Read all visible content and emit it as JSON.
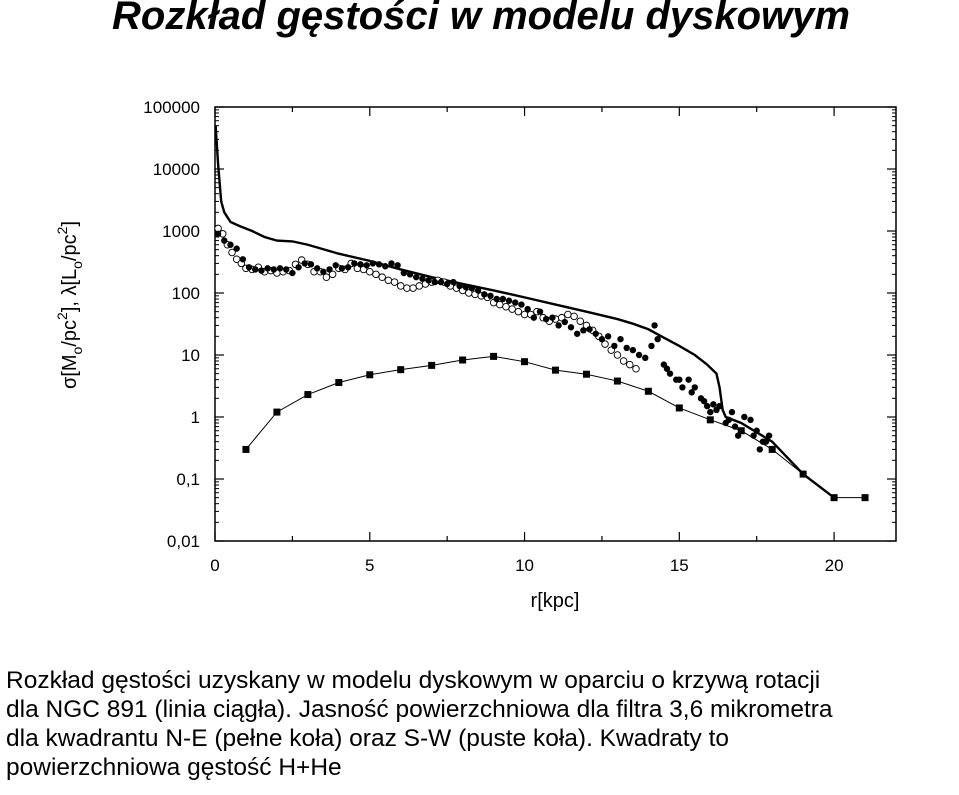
{
  "title": "Rozkład gęstości w modelu dyskowym",
  "caption_lines": [
    "Rozkład gęstości uzyskany w modelu dyskowym w oparciu o krzywą rotacji",
    "dla NGC 891 (linia ciągła). Jasność powierzchniowa dla filtra 3,6 mikrometra",
    "dla kwadrantu N-E (pełne koła) oraz S-W (puste koła). Kwadraty to",
    "powierzchniowa gęstość H+He"
  ],
  "chart_data": {
    "type": "scatter",
    "title": "",
    "xlabel": "r[kpc]",
    "ylabel": "σ[M_o/pc²], λ[L_o/pc²]",
    "ylabel_parts": {
      "sigma": "σ[M",
      "sub1": "o",
      "mid1": "/pc",
      "sup1": "2",
      "mid2": "], λ[L",
      "sub2": "o",
      "mid3": "/pc",
      "sup2": "2",
      "end": "]"
    },
    "y_scale": "log",
    "xlim": [
      0,
      22
    ],
    "ylim": [
      0.01,
      100000
    ],
    "x_ticks": [
      0,
      5,
      10,
      15,
      20
    ],
    "x_tick_labels": [
      "0",
      "5",
      "10",
      "15",
      "20"
    ],
    "y_ticks": [
      0.01,
      0.1,
      1,
      10,
      100,
      1000,
      10000,
      100000
    ],
    "y_tick_labels": [
      "0,01",
      "0,1",
      "1",
      "10",
      "100",
      "1000",
      "10000",
      "100000"
    ],
    "grid": false,
    "series": [
      {
        "style": "solid line",
        "x": [
          0.02,
          0.1,
          0.2,
          0.3,
          0.5,
          0.8,
          1.2,
          1.6,
          2.0,
          2.5,
          3.0,
          4.0,
          5.0,
          6.0,
          7.0,
          8.0,
          9.0,
          10.0,
          11.0,
          12.0,
          13.0,
          13.5,
          14.0,
          14.5,
          15.0,
          15.5,
          15.9,
          16.2,
          16.3,
          16.4,
          16.5,
          17.0,
          18.0,
          19.0,
          20.0
        ],
        "y": [
          50000,
          12000,
          3000,
          2000,
          1400,
          1200,
          1000,
          800,
          700,
          680,
          600,
          430,
          330,
          240,
          180,
          140,
          110,
          85,
          65,
          50,
          38,
          32,
          26,
          19,
          14,
          10,
          7,
          5,
          3,
          1.3,
          1.0,
          0.8,
          0.4,
          0.12,
          0.05
        ]
      },
      {
        "style": "line with filled squares",
        "x": [
          1,
          2,
          3,
          4,
          5,
          6,
          7,
          8,
          9,
          10,
          11,
          12,
          13,
          14,
          15,
          16,
          17,
          18,
          19,
          20,
          21
        ],
        "y": [
          0.3,
          1.2,
          2.3,
          3.6,
          4.8,
          5.8,
          6.8,
          8.3,
          9.5,
          7.8,
          5.7,
          4.9,
          3.8,
          2.6,
          1.4,
          0.9,
          0.6,
          0.3,
          0.12,
          0.05,
          0.05
        ]
      },
      {
        "style": "filled circles",
        "x": [
          0.1,
          0.3,
          0.5,
          0.7,
          0.9,
          1.1,
          1.3,
          1.5,
          1.7,
          1.9,
          2.1,
          2.3,
          2.5,
          2.7,
          2.9,
          3.1,
          3.3,
          3.5,
          3.7,
          3.9,
          4.1,
          4.3,
          4.5,
          4.7,
          4.9,
          5.1,
          5.3,
          5.5,
          5.7,
          5.9,
          6.1,
          6.3,
          6.5,
          6.7,
          6.9,
          7.1,
          7.3,
          7.5,
          7.7,
          7.9,
          8.1,
          8.3,
          8.5,
          8.7,
          8.9,
          9.1,
          9.3,
          9.5,
          9.7,
          9.9,
          10.1,
          10.3,
          10.5,
          10.7,
          10.9,
          11.1,
          11.3,
          11.5,
          11.7,
          11.9,
          12.1,
          12.3,
          12.5,
          12.7,
          12.9,
          13.1,
          13.3,
          13.5,
          13.7,
          13.9,
          14.1,
          14.3,
          14.5,
          14.7,
          14.9,
          15.1,
          15.3,
          15.5,
          15.7,
          15.9,
          16.1,
          16.3,
          16.5,
          16.7,
          16.9,
          17.1,
          17.3,
          17.5,
          17.7,
          17.9,
          14.2,
          14.6,
          15.0,
          15.4,
          15.8,
          16.2,
          16.6,
          17.0,
          17.4,
          17.8,
          16.0,
          16.8,
          17.6
        ],
        "y": [
          900,
          700,
          600,
          520,
          350,
          260,
          240,
          230,
          250,
          240,
          250,
          240,
          210,
          260,
          300,
          290,
          250,
          220,
          240,
          280,
          250,
          260,
          300,
          290,
          280,
          300,
          290,
          270,
          300,
          280,
          210,
          200,
          180,
          170,
          160,
          150,
          150,
          140,
          150,
          130,
          125,
          120,
          110,
          95,
          90,
          80,
          80,
          75,
          70,
          65,
          55,
          40,
          50,
          38,
          40,
          30,
          34,
          28,
          22,
          25,
          26,
          22,
          18,
          20,
          14,
          18,
          13,
          12,
          10,
          9,
          14,
          18,
          7,
          5,
          4,
          3,
          4,
          3,
          2,
          1.5,
          1.6,
          1.5,
          0.8,
          1.2,
          0.5,
          1.0,
          0.9,
          0.6,
          0.4,
          0.5,
          30,
          6,
          4,
          2.5,
          1.8,
          1.3,
          0.9,
          0.6,
          0.5,
          0.4,
          1.2,
          0.7,
          0.3
        ]
      },
      {
        "style": "open circles",
        "x": [
          0.1,
          0.25,
          0.4,
          0.55,
          0.7,
          0.85,
          1.0,
          1.2,
          1.4,
          1.6,
          1.8,
          2.0,
          2.2,
          2.4,
          2.6,
          2.8,
          3.0,
          3.2,
          3.4,
          3.6,
          3.8,
          4.0,
          4.2,
          4.4,
          4.6,
          4.8,
          5.0,
          5.2,
          5.4,
          5.6,
          5.8,
          6.0,
          6.2,
          6.4,
          6.6,
          6.8,
          7.0,
          7.2,
          7.4,
          7.6,
          7.8,
          8.0,
          8.2,
          8.4,
          8.6,
          8.8,
          9.0,
          9.2,
          9.4,
          9.6,
          9.8,
          10.0,
          10.2,
          10.4,
          10.6,
          10.8,
          11.0,
          11.2,
          11.4,
          11.6,
          11.8,
          12.0,
          12.2,
          12.4,
          12.6,
          12.8,
          13.0,
          13.2,
          13.4,
          13.6
        ],
        "y": [
          1100,
          900,
          600,
          450,
          350,
          300,
          250,
          240,
          260,
          220,
          230,
          210,
          220,
          230,
          290,
          340,
          290,
          220,
          220,
          180,
          200,
          250,
          240,
          300,
          250,
          240,
          220,
          200,
          180,
          160,
          150,
          130,
          120,
          120,
          130,
          140,
          150,
          160,
          150,
          130,
          120,
          110,
          100,
          95,
          90,
          85,
          70,
          65,
          60,
          55,
          50,
          45,
          45,
          50,
          40,
          35,
          38,
          40,
          45,
          42,
          35,
          30,
          25,
          20,
          15,
          12,
          10,
          8,
          7,
          6
        ]
      }
    ]
  }
}
